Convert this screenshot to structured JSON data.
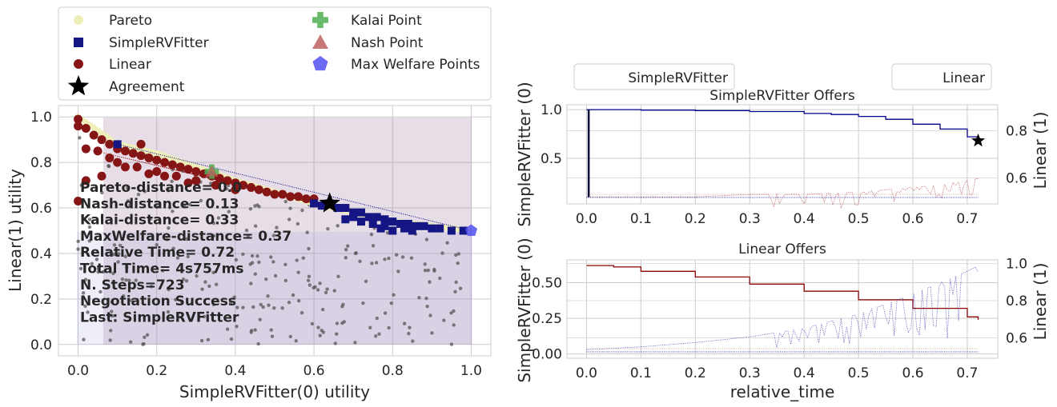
{
  "legend_main": {
    "items": [
      {
        "label": "Pareto",
        "marker": "circle",
        "color": "#eeeeb9"
      },
      {
        "label": "SimpleRVFitter",
        "marker": "square",
        "color": "#151584"
      },
      {
        "label": "Linear",
        "marker": "circle",
        "color": "#861515"
      },
      {
        "label": "Agreement",
        "marker": "star",
        "color": "#000000"
      },
      {
        "label": "Kalai Point",
        "marker": "plus",
        "color": "#4caf50"
      },
      {
        "label": "Nash Point",
        "marker": "triangle",
        "color": "#c06060"
      },
      {
        "label": "Max Welfare Points",
        "marker": "pentagon",
        "color": "#5050f0"
      }
    ]
  },
  "stats": {
    "lines": [
      "Pareto-distance= 0.0",
      "Nash-distance= 0.13",
      "Kalai-distance= 0.33",
      "MaxWelfare-distance= 0.37",
      "Relative Time= 0.72",
      "Total Time= 4s757ms",
      "N. Steps=723",
      "Negotiation Success",
      "Last: SimpleRVFitter"
    ]
  },
  "right_legend": {
    "left": "SimpleRVFitter",
    "right": "Linear"
  },
  "colors": {
    "agent0": "#00008b",
    "agent1": "#8b0000",
    "grid": "#cccccc",
    "bg": "#ffffff"
  },
  "chart_data": [
    {
      "type": "scatter",
      "title": "",
      "xlabel": "SimpleRVFitter(0) utility",
      "ylabel": "Linear(1) utility",
      "xlim": [
        -0.05,
        1.05
      ],
      "ylim": [
        -0.05,
        1.05
      ],
      "xticks": [
        "0.0",
        "0.2",
        "0.4",
        "0.6",
        "0.8",
        "1.0"
      ],
      "yticks": [
        "0.0",
        "0.2",
        "0.4",
        "0.6",
        "0.8",
        "1.0"
      ],
      "grid": true,
      "pareto": [
        [
          0.0,
          1.0
        ],
        [
          0.1,
          0.88
        ],
        [
          0.2,
          0.84
        ],
        [
          0.3,
          0.78
        ],
        [
          0.4,
          0.72
        ],
        [
          0.5,
          0.67
        ],
        [
          0.6,
          0.62
        ],
        [
          0.7,
          0.58
        ],
        [
          0.8,
          0.54
        ],
        [
          0.9,
          0.52
        ],
        [
          1.0,
          0.5
        ]
      ],
      "agreement": [
        0.64,
        0.62
      ],
      "kalai_point": [
        0.34,
        0.76
      ],
      "nash_point": [
        0.34,
        0.76
      ],
      "max_welfare_point": [
        1.0,
        0.5
      ],
      "offers_simplervfitter": [
        [
          0.64,
          0.62
        ],
        [
          0.66,
          0.6
        ],
        [
          0.68,
          0.6
        ],
        [
          0.7,
          0.58
        ],
        [
          0.72,
          0.58
        ],
        [
          0.74,
          0.56
        ],
        [
          0.76,
          0.56
        ],
        [
          0.78,
          0.55
        ],
        [
          0.8,
          0.54
        ],
        [
          0.82,
          0.53
        ],
        [
          0.84,
          0.53
        ],
        [
          0.86,
          0.52
        ],
        [
          0.88,
          0.52
        ],
        [
          0.9,
          0.51
        ],
        [
          0.92,
          0.51
        ],
        [
          0.95,
          0.5
        ],
        [
          0.98,
          0.5
        ],
        [
          0.7,
          0.56
        ],
        [
          0.75,
          0.53
        ],
        [
          0.8,
          0.5
        ],
        [
          0.85,
          0.5
        ],
        [
          0.78,
          0.52
        ],
        [
          0.72,
          0.54
        ],
        [
          0.62,
          0.61
        ],
        [
          0.6,
          0.62
        ],
        [
          0.68,
          0.55
        ],
        [
          0.77,
          0.51
        ],
        [
          0.83,
          0.51
        ],
        [
          0.1,
          0.88
        ]
      ],
      "offers_linear": [
        [
          0.0,
          0.99
        ],
        [
          0.0,
          0.96
        ],
        [
          0.02,
          0.95
        ],
        [
          0.04,
          0.92
        ],
        [
          0.06,
          0.9
        ],
        [
          0.08,
          0.88
        ],
        [
          0.1,
          0.86
        ],
        [
          0.12,
          0.85
        ],
        [
          0.14,
          0.84
        ],
        [
          0.16,
          0.83
        ],
        [
          0.18,
          0.82
        ],
        [
          0.2,
          0.81
        ],
        [
          0.22,
          0.8
        ],
        [
          0.24,
          0.79
        ],
        [
          0.26,
          0.78
        ],
        [
          0.28,
          0.77
        ],
        [
          0.3,
          0.76
        ],
        [
          0.32,
          0.75
        ],
        [
          0.34,
          0.74
        ],
        [
          0.36,
          0.73
        ],
        [
          0.38,
          0.72
        ],
        [
          0.4,
          0.71
        ],
        [
          0.42,
          0.7
        ],
        [
          0.44,
          0.69
        ],
        [
          0.46,
          0.68
        ],
        [
          0.48,
          0.67
        ],
        [
          0.5,
          0.66
        ],
        [
          0.52,
          0.66
        ],
        [
          0.54,
          0.65
        ],
        [
          0.56,
          0.65
        ],
        [
          0.58,
          0.64
        ],
        [
          0.6,
          0.64
        ],
        [
          0.05,
          0.85
        ],
        [
          0.1,
          0.8
        ],
        [
          0.15,
          0.78
        ],
        [
          0.2,
          0.76
        ],
        [
          0.25,
          0.74
        ],
        [
          0.3,
          0.72
        ],
        [
          0.08,
          0.82
        ],
        [
          0.12,
          0.78
        ],
        [
          0.18,
          0.75
        ],
        [
          0.22,
          0.74
        ],
        [
          0.0,
          0.63
        ],
        [
          0.02,
          0.72
        ],
        [
          0.06,
          0.74
        ],
        [
          0.35,
          0.7
        ],
        [
          0.4,
          0.68
        ],
        [
          0.28,
          0.71
        ],
        [
          0.16,
          0.88
        ],
        [
          0.02,
          0.86
        ]
      ]
    },
    {
      "type": "line",
      "title": "SimpleRVFitter Offers",
      "xlabel": "",
      "ylabel": "SimpleRVFitter (0)",
      "ylabel_right": "Linear (1)",
      "xlim": [
        -0.036,
        0.756
      ],
      "ylim": [
        0.03,
        1.05
      ],
      "ylim_right": [
        0.49,
        0.91
      ],
      "xticks": [
        "0.0",
        "0.1",
        "0.2",
        "0.3",
        "0.4",
        "0.5",
        "0.6",
        "0.7"
      ],
      "yticks": [
        "0.5",
        "1.0"
      ],
      "yticks_right": [
        "0.6",
        "0.8"
      ],
      "series": [
        {
          "name": "SimpleRVFitter",
          "x": [
            0.0,
            0.05,
            0.1,
            0.2,
            0.3,
            0.4,
            0.45,
            0.5,
            0.55,
            0.6,
            0.65,
            0.7,
            0.72
          ],
          "y": [
            1.0,
            1.0,
            0.995,
            0.99,
            0.98,
            0.96,
            0.95,
            0.93,
            0.9,
            0.85,
            0.8,
            0.72,
            0.68
          ]
        },
        {
          "name": "Linear",
          "x": [
            0.0,
            0.1,
            0.2,
            0.3,
            0.4,
            0.5,
            0.55,
            0.6,
            0.65,
            0.7,
            0.72
          ],
          "y": [
            0.52,
            0.52,
            0.52,
            0.53,
            0.53,
            0.54,
            0.55,
            0.56,
            0.57,
            0.59,
            0.6
          ]
        }
      ],
      "agreement": [
        0.72,
        0.68
      ]
    },
    {
      "type": "line",
      "title": "Linear Offers",
      "xlabel": "relative_time",
      "ylabel": "SimpleRVFitter (0)",
      "ylabel_right": "Linear (1)",
      "xlim": [
        -0.036,
        0.756
      ],
      "ylim": [
        -0.03,
        0.66
      ],
      "ylim_right": [
        0.49,
        1.02
      ],
      "xticks": [
        "0.0",
        "0.1",
        "0.2",
        "0.3",
        "0.4",
        "0.5",
        "0.6",
        "0.7"
      ],
      "yticks": [
        "0.00",
        "0.25",
        "0.50"
      ],
      "yticks_right": [
        "0.6",
        "0.8",
        "1.0"
      ],
      "series": [
        {
          "name": "Linear",
          "x": [
            0.0,
            0.05,
            0.1,
            0.2,
            0.3,
            0.4,
            0.5,
            0.6,
            0.7,
            0.72
          ],
          "y": [
            0.62,
            0.61,
            0.58,
            0.54,
            0.49,
            0.44,
            0.38,
            0.32,
            0.26,
            0.24
          ]
        },
        {
          "name": "SimpleRVFitter",
          "x": [
            0.0,
            0.1,
            0.2,
            0.3,
            0.4,
            0.5,
            0.55,
            0.6,
            0.65,
            0.7,
            0.72
          ],
          "y": [
            0.03,
            0.05,
            0.08,
            0.12,
            0.18,
            0.28,
            0.35,
            0.42,
            0.5,
            0.58,
            0.62
          ]
        }
      ]
    }
  ]
}
